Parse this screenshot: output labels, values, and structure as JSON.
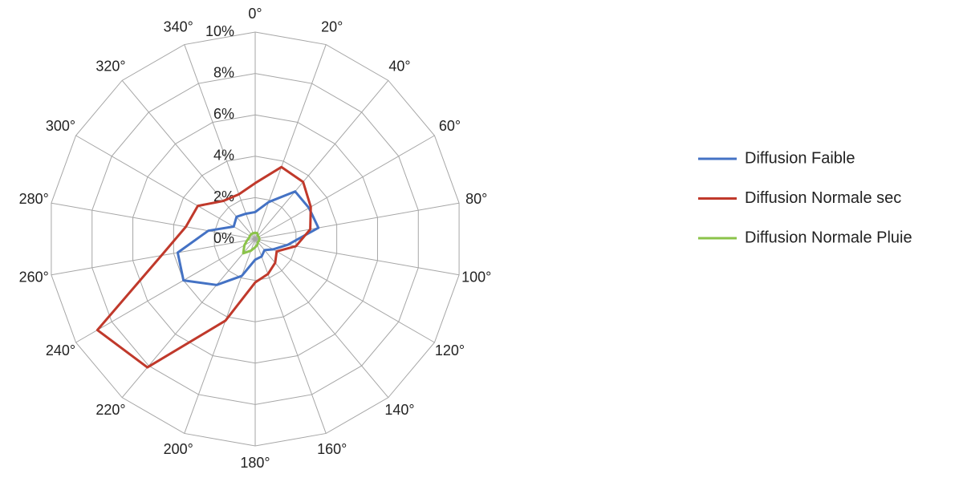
{
  "chart_data": {
    "type": "radar",
    "categories": [
      "0°",
      "20°",
      "40°",
      "60°",
      "80°",
      "100°",
      "120°",
      "140°",
      "160°",
      "180°",
      "200°",
      "220°",
      "240°",
      "260°",
      "280°",
      "300°",
      "320°",
      "340°"
    ],
    "ylim": [
      0,
      10
    ],
    "yticks": [
      {
        "value": 0,
        "label": "0%"
      },
      {
        "value": 2,
        "label": "2%"
      },
      {
        "value": 4,
        "label": "4%"
      },
      {
        "value": 6,
        "label": "6%"
      },
      {
        "value": 8,
        "label": "8%"
      },
      {
        "value": 10,
        "label": "10%"
      }
    ],
    "grid": true,
    "legend": "right",
    "series": [
      {
        "name": "Diffusion Faible",
        "color": "#4472c4",
        "values": [
          1.3,
          1.9,
          3.0,
          3.0,
          3.1,
          1.6,
          1.0,
          0.7,
          0.9,
          1.0,
          1.9,
          2.9,
          4.0,
          3.8,
          2.3,
          1.2,
          1.4,
          1.3
        ]
      },
      {
        "name": "Diffusion Normale sec",
        "color": "#c0392b",
        "values": [
          2.7,
          3.7,
          3.6,
          3.1,
          2.7,
          2.0,
          1.2,
          1.5,
          1.8,
          2.1,
          4.2,
          8.1,
          8.8,
          4.6,
          3.4,
          3.2,
          2.4,
          2.3
        ]
      },
      {
        "name": "Diffusion Normale Pluie",
        "color": "#8bc34a",
        "values": [
          0.3,
          0.3,
          0.2,
          0.2,
          0.2,
          0.2,
          0.2,
          0.2,
          0.3,
          0.4,
          0.6,
          0.9,
          0.6,
          0.4,
          0.3,
          0.3,
          0.3,
          0.3
        ]
      }
    ]
  }
}
